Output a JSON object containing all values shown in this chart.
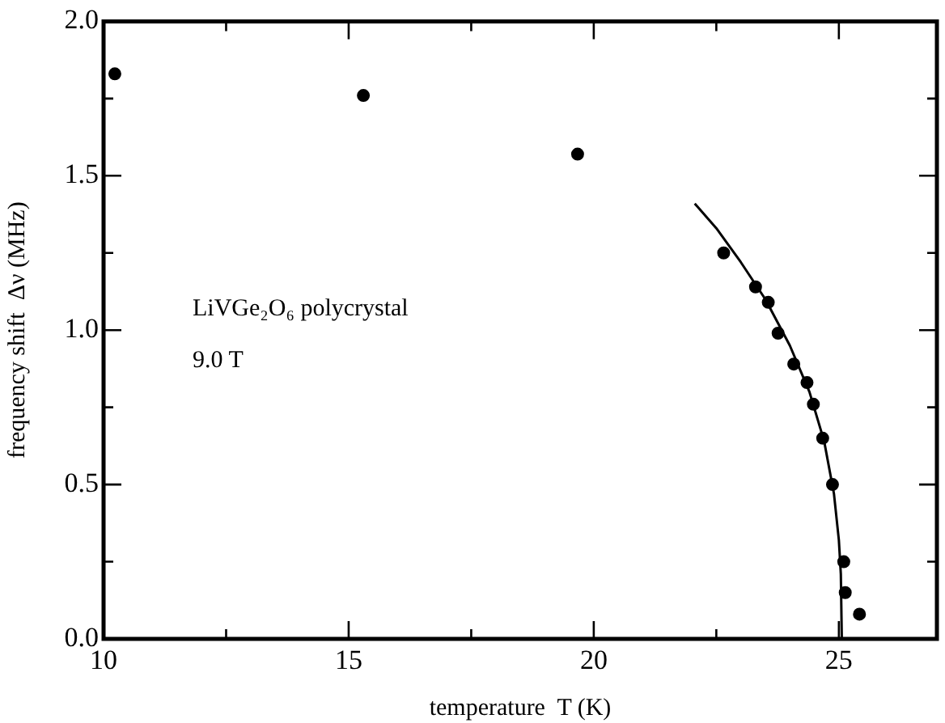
{
  "chart_data": {
    "type": "scatter",
    "xlabel": "temperature  T (K)",
    "ylabel": "frequency shift  Δν (MHz)",
    "annotations": [
      "LiVGe₂O₆ polycrystal",
      "9.0 T"
    ],
    "series": [
      {
        "color": "#000000",
        "marker": "circle",
        "x": [
          10.23,
          15.3,
          19.67,
          22.65,
          23.3,
          23.56,
          23.76,
          24.08,
          24.35,
          24.48,
          24.67,
          24.87,
          25.1,
          25.13,
          25.42
        ],
        "values": [
          1.83,
          1.76,
          1.57,
          1.25,
          1.14,
          1.09,
          0.99,
          0.89,
          0.83,
          0.76,
          0.65,
          0.5,
          0.25,
          0.15,
          0.08
        ]
      },
      {
        "type": "line",
        "color": "#000000",
        "marker": "none",
        "x": [
          22.06,
          22.5,
          23,
          23.5,
          24,
          24.4,
          24.7,
          24.9,
          25,
          25.04,
          25.06
        ],
        "values": [
          1.41,
          1.33,
          1.22,
          1.1,
          0.95,
          0.8,
          0.64,
          0.47,
          0.32,
          0.21,
          0
        ]
      }
    ],
    "xlim": [
      10,
      27
    ],
    "xticks": [
      10,
      {
        "value": 12.5,
        "label": null
      },
      15,
      {
        "value": 17.5,
        "label": null
      },
      20,
      {
        "value": 22.5,
        "label": null
      },
      25
    ],
    "ylim": [
      0,
      2
    ],
    "yticks": [
      {
        "value": 0,
        "label": "0.0"
      },
      {
        "value": 0.25,
        "label": null
      },
      {
        "value": 0.5,
        "label": "0.5"
      },
      {
        "value": 0.75,
        "label": null
      },
      {
        "value": 1,
        "label": "1.0"
      },
      {
        "value": 1.25,
        "label": null
      },
      {
        "value": 1.5,
        "label": "1.5"
      },
      {
        "value": 1.75,
        "label": null
      },
      {
        "value": 2,
        "label": "2.0"
      }
    ],
    "grid": false,
    "legend": false
  }
}
